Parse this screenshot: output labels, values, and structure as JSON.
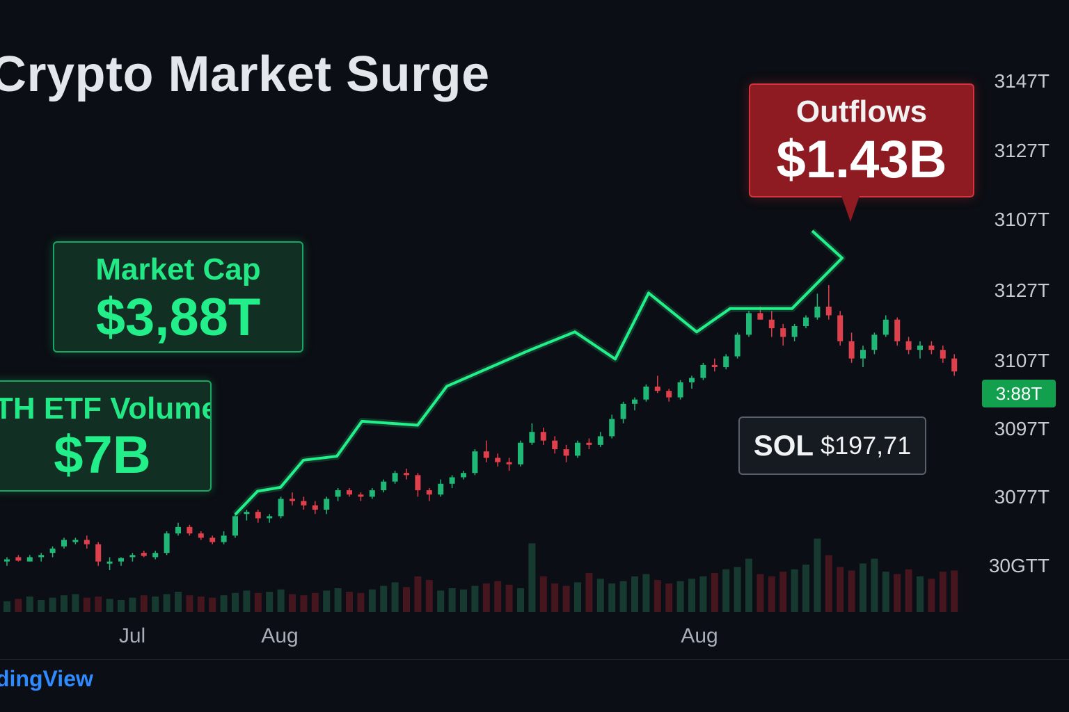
{
  "chart_data": {
    "type": "candlestick",
    "title": "Crypto Market Surge",
    "y_tick_labels": [
      "3147T",
      "3127T",
      "3107T",
      "3127T",
      "3107T",
      "3097T",
      "3077T",
      "30GTT"
    ],
    "x_tick_labels": [
      "Jul",
      "Aug",
      "Aug"
    ],
    "current_price_label": "3:88T",
    "overlay_line": {
      "name": "",
      "values": [
        8,
        14,
        15,
        22,
        23,
        32,
        31,
        41,
        50,
        55,
        48,
        65,
        55,
        61,
        61,
        74,
        81
      ]
    },
    "candles": {
      "unit": "relative",
      "ohlc": [
        [
          10,
          11,
          9,
          10.5
        ],
        [
          11,
          11.5,
          10,
          10.2
        ],
        [
          10,
          11.5,
          10,
          11
        ],
        [
          11,
          12,
          10,
          11.5
        ],
        [
          12,
          13.5,
          11,
          13
        ],
        [
          13.5,
          15.5,
          13,
          15
        ],
        [
          14.5,
          15.5,
          14,
          15
        ],
        [
          15,
          16,
          13,
          14
        ],
        [
          14,
          14.5,
          9,
          10
        ],
        [
          9.5,
          11,
          8,
          10
        ],
        [
          10,
          11,
          9,
          10.8
        ],
        [
          11,
          12,
          10,
          11.5
        ],
        [
          12,
          12.5,
          11,
          11.3
        ],
        [
          11,
          12.5,
          10.5,
          12
        ],
        [
          12,
          17,
          11.5,
          16.5
        ],
        [
          16.5,
          19,
          16,
          18
        ],
        [
          18,
          18.5,
          16,
          16.5
        ],
        [
          16.5,
          17,
          15,
          15.5
        ],
        [
          15.5,
          16,
          14,
          14.5
        ],
        [
          14.5,
          17,
          14,
          16
        ],
        [
          16,
          21,
          15.5,
          20.5
        ],
        [
          21,
          22,
          19.5,
          21.5
        ],
        [
          21.5,
          22,
          19,
          20
        ],
        [
          20,
          21,
          19,
          20.5
        ],
        [
          20.5,
          25,
          20,
          24.5
        ],
        [
          24.5,
          26,
          23,
          24
        ],
        [
          24,
          25,
          22,
          23
        ],
        [
          23,
          24,
          21,
          22
        ],
        [
          22,
          25,
          21,
          24.5
        ],
        [
          25,
          27,
          24,
          26.5
        ],
        [
          26.5,
          27,
          25,
          25.5
        ],
        [
          25.5,
          26,
          24,
          25
        ],
        [
          25,
          27,
          24.5,
          26.5
        ],
        [
          26.5,
          29,
          26,
          28.5
        ],
        [
          28.5,
          31,
          28,
          30.5
        ],
        [
          30.5,
          31.5,
          29,
          30
        ],
        [
          30,
          30.5,
          25,
          26.5
        ],
        [
          26.5,
          27,
          24,
          25.5
        ],
        [
          25.5,
          29,
          25,
          28
        ],
        [
          28,
          30,
          27,
          29.5
        ],
        [
          29.5,
          31,
          29,
          30.5
        ],
        [
          30.5,
          36,
          30,
          35.5
        ],
        [
          35.5,
          38,
          33,
          34
        ],
        [
          34,
          35,
          32,
          33
        ],
        [
          33,
          34,
          31,
          32.5
        ],
        [
          32.5,
          38,
          32,
          37.5
        ],
        [
          37.5,
          42,
          37,
          40
        ],
        [
          40,
          41,
          37,
          38
        ],
        [
          38,
          39,
          35,
          36
        ],
        [
          36,
          37,
          33,
          34.5
        ],
        [
          34.5,
          38,
          34,
          37.5
        ],
        [
          37.5,
          38.5,
          36,
          37
        ],
        [
          37,
          40,
          36.5,
          39
        ],
        [
          39,
          44,
          38.5,
          43
        ],
        [
          43,
          47,
          42,
          46.5
        ],
        [
          46.5,
          48,
          45,
          47.5
        ],
        [
          47.5,
          51,
          47,
          50.5
        ],
        [
          50.5,
          53,
          49,
          49.5
        ],
        [
          49.5,
          50,
          47,
          48
        ],
        [
          48,
          52,
          47.5,
          51.5
        ],
        [
          51.5,
          53,
          50,
          52.5
        ],
        [
          52.5,
          56,
          52,
          55.5
        ],
        [
          55.5,
          57,
          54,
          55
        ],
        [
          55,
          58,
          54.5,
          57.5
        ],
        [
          57.5,
          63,
          57,
          62.5
        ],
        [
          62.5,
          68,
          62,
          67.5
        ],
        [
          67.5,
          69,
          66,
          66
        ],
        [
          66,
          68,
          62,
          64
        ],
        [
          64,
          65,
          60,
          62
        ],
        [
          62,
          65,
          61,
          64.5
        ],
        [
          64.5,
          67,
          64,
          66.5
        ],
        [
          66.5,
          72,
          66,
          69
        ],
        [
          69,
          74,
          66,
          67
        ],
        [
          67,
          68,
          60,
          61
        ],
        [
          61,
          63,
          56,
          57
        ],
        [
          57,
          60,
          55,
          59
        ],
        [
          59,
          63,
          58,
          62.5
        ],
        [
          62.5,
          67,
          62,
          66
        ],
        [
          66,
          66.5,
          60,
          61
        ],
        [
          61,
          62,
          58,
          59
        ],
        [
          59,
          61,
          57,
          60
        ],
        [
          60,
          61,
          58,
          59
        ],
        [
          59,
          60,
          56,
          57
        ],
        [
          57,
          58,
          53,
          54
        ]
      ]
    },
    "volume": [
      9,
      11,
      13,
      10,
      12,
      14,
      15,
      12,
      13,
      11,
      10,
      12,
      14,
      13,
      15,
      17,
      14,
      13,
      12,
      14,
      16,
      18,
      16,
      17,
      19,
      15,
      14,
      16,
      18,
      20,
      17,
      16,
      19,
      22,
      25,
      21,
      30,
      27,
      18,
      20,
      19,
      22,
      24,
      26,
      23,
      20,
      58,
      30,
      24,
      22,
      25,
      33,
      28,
      24,
      26,
      30,
      32,
      27,
      24,
      26,
      28,
      30,
      33,
      36,
      38,
      45,
      32,
      30,
      34,
      36,
      40,
      62,
      48,
      38,
      35,
      41,
      45,
      34,
      32,
      36,
      30,
      28,
      34,
      35
    ]
  },
  "annotations": {
    "market_cap": {
      "label": "Market Cap",
      "value": "$3,88T"
    },
    "etf_volume": {
      "label": "TH ETF Volume",
      "value": "$7B"
    },
    "outflows": {
      "label": "Outflows",
      "value": "$1.43B"
    },
    "sol": {
      "symbol": "SOL",
      "price": "$197,71"
    }
  },
  "brand": "dingView",
  "colors": {
    "up": "#1fb877",
    "down": "#e0404c",
    "line": "#22f08a",
    "background": "#0b0e14",
    "price_tag": "#12a04f",
    "outflow_box": "#8e1a22"
  }
}
